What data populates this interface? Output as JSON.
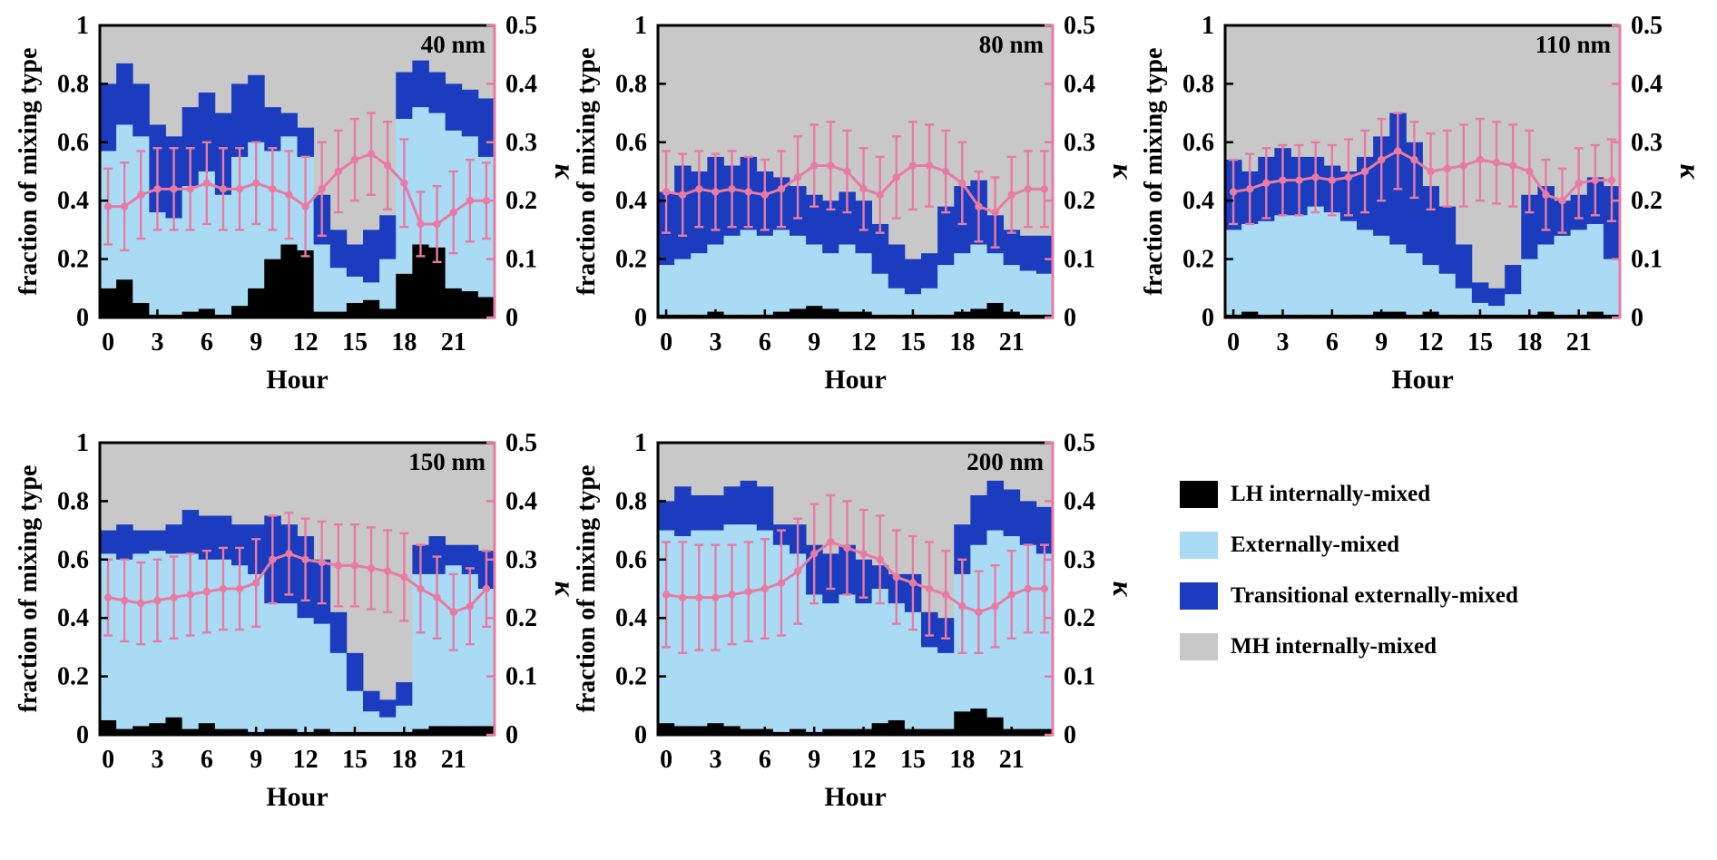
{
  "axes": {
    "x_label": "Hour",
    "x_ticks": [
      0,
      3,
      6,
      9,
      12,
      15,
      18,
      21
    ],
    "x_range": [
      -0.5,
      23.5
    ],
    "left_label": "fraction of mixing type",
    "left_ticks": [
      "0",
      "0.2",
      "0.4",
      "0.6",
      "0.8",
      "1"
    ],
    "left_range": [
      0,
      1
    ],
    "right_label": "κ",
    "right_ticks": [
      "0",
      "0.1",
      "0.2",
      "0.3",
      "0.4",
      "0.5"
    ],
    "right_range": [
      0,
      0.5
    ],
    "grid": false,
    "legend_position": "bottom-right-cell"
  },
  "colors": {
    "lh": "#000000",
    "ext": "#a9dbf5",
    "trans": "#1b3cbe",
    "mh": "#c8c8c8",
    "kappa": "#e87ba3",
    "axis": "#000000",
    "background": "#ffffff"
  },
  "legend": {
    "items": [
      {
        "label": "LH internally-mixed",
        "color": "#000000"
      },
      {
        "label": "Externally-mixed",
        "color": "#a9dbf5"
      },
      {
        "label": "Transitional externally-mixed",
        "color": "#1b3cbe"
      },
      {
        "label": "MH internally-mixed",
        "color": "#c8c8c8"
      }
    ]
  },
  "chart_data": [
    {
      "type": "bar",
      "stacked": true,
      "title": "40 nm",
      "x": [
        0,
        1,
        2,
        3,
        4,
        5,
        6,
        7,
        8,
        9,
        10,
        11,
        12,
        13,
        14,
        15,
        16,
        17,
        18,
        19,
        20,
        21,
        22,
        23
      ],
      "series": [
        {
          "name": "LH internally-mixed",
          "color_key": "lh",
          "values": [
            0.1,
            0.13,
            0.05,
            0.01,
            0.01,
            0.02,
            0.03,
            0.01,
            0.04,
            0.1,
            0.2,
            0.25,
            0.23,
            0.02,
            0.02,
            0.05,
            0.06,
            0.03,
            0.15,
            0.25,
            0.24,
            0.1,
            0.09,
            0.07
          ]
        },
        {
          "name": "Externally-mixed",
          "color_key": "ext",
          "values": [
            0.47,
            0.53,
            0.57,
            0.35,
            0.33,
            0.43,
            0.47,
            0.41,
            0.51,
            0.5,
            0.37,
            0.37,
            0.32,
            0.23,
            0.15,
            0.09,
            0.06,
            0.17,
            0.53,
            0.47,
            0.46,
            0.54,
            0.53,
            0.48
          ]
        },
        {
          "name": "Transitional externally-mixed",
          "color_key": "trans",
          "values": [
            0.23,
            0.21,
            0.18,
            0.3,
            0.28,
            0.27,
            0.27,
            0.28,
            0.25,
            0.23,
            0.15,
            0.08,
            0.1,
            0.17,
            0.13,
            0.11,
            0.18,
            0.15,
            0.16,
            0.16,
            0.14,
            0.16,
            0.16,
            0.2
          ]
        },
        {
          "name": "MH internally-mixed",
          "color_key": "mh",
          "values": "remainder_to_1"
        }
      ],
      "kappa": {
        "values": [
          0.19,
          0.19,
          0.21,
          0.22,
          0.22,
          0.22,
          0.23,
          0.22,
          0.22,
          0.23,
          0.22,
          0.21,
          0.19,
          0.22,
          0.25,
          0.27,
          0.28,
          0.26,
          0.23,
          0.16,
          0.16,
          0.18,
          0.2,
          0.2
        ],
        "err": [
          0.065,
          0.075,
          0.075,
          0.07,
          0.07,
          0.07,
          0.07,
          0.07,
          0.07,
          0.07,
          0.07,
          0.075,
          0.085,
          0.08,
          0.07,
          0.07,
          0.07,
          0.075,
          0.075,
          0.055,
          0.065,
          0.07,
          0.07,
          0.065
        ]
      }
    },
    {
      "type": "bar",
      "stacked": true,
      "title": "80 nm",
      "x": [
        0,
        1,
        2,
        3,
        4,
        5,
        6,
        7,
        8,
        9,
        10,
        11,
        12,
        13,
        14,
        15,
        16,
        17,
        18,
        19,
        20,
        21,
        22,
        23
      ],
      "series": [
        {
          "name": "LH internally-mixed",
          "color_key": "lh",
          "values": [
            0.01,
            0.01,
            0.01,
            0.02,
            0.01,
            0.01,
            0.01,
            0.02,
            0.03,
            0.04,
            0.03,
            0.02,
            0.02,
            0.01,
            0.01,
            0.01,
            0.01,
            0.01,
            0.02,
            0.03,
            0.05,
            0.02,
            0.01,
            0.01
          ]
        },
        {
          "name": "Externally-mixed",
          "color_key": "ext",
          "values": [
            0.17,
            0.19,
            0.21,
            0.23,
            0.27,
            0.29,
            0.27,
            0.28,
            0.25,
            0.21,
            0.19,
            0.23,
            0.2,
            0.14,
            0.09,
            0.07,
            0.09,
            0.17,
            0.2,
            0.22,
            0.17,
            0.16,
            0.15,
            0.14
          ]
        },
        {
          "name": "Transitional externally-mixed",
          "color_key": "trans",
          "values": [
            0.25,
            0.32,
            0.28,
            0.3,
            0.24,
            0.25,
            0.22,
            0.18,
            0.17,
            0.17,
            0.18,
            0.18,
            0.18,
            0.17,
            0.15,
            0.12,
            0.12,
            0.2,
            0.23,
            0.22,
            0.13,
            0.12,
            0.12,
            0.13
          ]
        },
        {
          "name": "MH internally-mixed",
          "color_key": "mh",
          "values": "remainder_to_1"
        }
      ],
      "kappa": {
        "values": [
          0.215,
          0.21,
          0.22,
          0.215,
          0.22,
          0.215,
          0.21,
          0.22,
          0.24,
          0.26,
          0.26,
          0.25,
          0.22,
          0.21,
          0.24,
          0.26,
          0.26,
          0.25,
          0.23,
          0.19,
          0.18,
          0.21,
          0.22,
          0.22
        ],
        "err": [
          0.07,
          0.07,
          0.065,
          0.065,
          0.065,
          0.06,
          0.06,
          0.065,
          0.07,
          0.07,
          0.075,
          0.07,
          0.07,
          0.065,
          0.07,
          0.075,
          0.07,
          0.07,
          0.07,
          0.06,
          0.06,
          0.065,
          0.065,
          0.065
        ]
      }
    },
    {
      "type": "bar",
      "stacked": true,
      "title": "110 nm",
      "x": [
        0,
        1,
        2,
        3,
        4,
        5,
        6,
        7,
        8,
        9,
        10,
        11,
        12,
        13,
        14,
        15,
        16,
        17,
        18,
        19,
        20,
        21,
        22,
        23
      ],
      "series": [
        {
          "name": "LH internally-mixed",
          "color_key": "lh",
          "values": [
            0.01,
            0.02,
            0.01,
            0.01,
            0.01,
            0.01,
            0.01,
            0.01,
            0.01,
            0.02,
            0.02,
            0.01,
            0.02,
            0.01,
            0.01,
            0.01,
            0.01,
            0.01,
            0.01,
            0.02,
            0.01,
            0.01,
            0.02,
            0.01
          ]
        },
        {
          "name": "Externally-mixed",
          "color_key": "ext",
          "values": [
            0.29,
            0.3,
            0.32,
            0.34,
            0.34,
            0.37,
            0.35,
            0.32,
            0.29,
            0.26,
            0.23,
            0.21,
            0.16,
            0.14,
            0.09,
            0.04,
            0.03,
            0.07,
            0.19,
            0.23,
            0.27,
            0.29,
            0.3,
            0.19
          ]
        },
        {
          "name": "Transitional externally-mixed",
          "color_key": "trans",
          "values": [
            0.24,
            0.18,
            0.22,
            0.23,
            0.2,
            0.17,
            0.16,
            0.17,
            0.25,
            0.34,
            0.45,
            0.38,
            0.27,
            0.23,
            0.15,
            0.07,
            0.06,
            0.1,
            0.22,
            0.2,
            0.12,
            0.12,
            0.16,
            0.25
          ]
        },
        {
          "name": "MH internally-mixed",
          "color_key": "mh",
          "values": "remainder_to_1"
        }
      ],
      "kappa": {
        "values": [
          0.215,
          0.22,
          0.23,
          0.235,
          0.235,
          0.24,
          0.235,
          0.24,
          0.25,
          0.27,
          0.285,
          0.27,
          0.25,
          0.255,
          0.26,
          0.27,
          0.265,
          0.26,
          0.25,
          0.21,
          0.2,
          0.23,
          0.235,
          0.235
        ],
        "err": [
          0.055,
          0.06,
          0.06,
          0.06,
          0.06,
          0.06,
          0.06,
          0.065,
          0.07,
          0.07,
          0.065,
          0.065,
          0.065,
          0.065,
          0.07,
          0.07,
          0.07,
          0.07,
          0.07,
          0.06,
          0.055,
          0.06,
          0.06,
          0.07
        ]
      }
    },
    {
      "type": "bar",
      "stacked": true,
      "title": "150 nm",
      "x": [
        0,
        1,
        2,
        3,
        4,
        5,
        6,
        7,
        8,
        9,
        10,
        11,
        12,
        13,
        14,
        15,
        16,
        17,
        18,
        19,
        20,
        21,
        22,
        23
      ],
      "series": [
        {
          "name": "LH internally-mixed",
          "color_key": "lh",
          "values": [
            0.05,
            0.02,
            0.03,
            0.04,
            0.06,
            0.02,
            0.04,
            0.02,
            0.02,
            0.01,
            0.02,
            0.02,
            0.01,
            0.02,
            0.01,
            0.01,
            0.01,
            0.01,
            0.01,
            0.02,
            0.03,
            0.03,
            0.03,
            0.03
          ]
        },
        {
          "name": "Externally-mixed",
          "color_key": "ext",
          "values": [
            0.57,
            0.58,
            0.59,
            0.59,
            0.56,
            0.6,
            0.56,
            0.58,
            0.56,
            0.54,
            0.43,
            0.43,
            0.39,
            0.36,
            0.27,
            0.14,
            0.07,
            0.05,
            0.09,
            0.53,
            0.52,
            0.55,
            0.52,
            0.47
          ]
        },
        {
          "name": "Transitional externally-mixed",
          "color_key": "trans",
          "values": [
            0.08,
            0.12,
            0.08,
            0.07,
            0.1,
            0.15,
            0.15,
            0.15,
            0.14,
            0.17,
            0.3,
            0.27,
            0.28,
            0.22,
            0.14,
            0.13,
            0.07,
            0.06,
            0.08,
            0.1,
            0.13,
            0.07,
            0.1,
            0.13
          ]
        },
        {
          "name": "MH internally-mixed",
          "color_key": "mh",
          "values": "remainder_to_1"
        }
      ],
      "kappa": {
        "values": [
          0.235,
          0.23,
          0.225,
          0.23,
          0.235,
          0.24,
          0.245,
          0.25,
          0.25,
          0.26,
          0.3,
          0.31,
          0.3,
          0.295,
          0.29,
          0.29,
          0.285,
          0.28,
          0.27,
          0.25,
          0.235,
          0.21,
          0.22,
          0.25
        ],
        "err": [
          0.065,
          0.07,
          0.07,
          0.07,
          0.07,
          0.07,
          0.07,
          0.07,
          0.07,
          0.075,
          0.075,
          0.07,
          0.07,
          0.07,
          0.07,
          0.07,
          0.07,
          0.07,
          0.075,
          0.075,
          0.07,
          0.065,
          0.065,
          0.065
        ]
      }
    },
    {
      "type": "bar",
      "stacked": true,
      "title": "200 nm",
      "x": [
        0,
        1,
        2,
        3,
        4,
        5,
        6,
        7,
        8,
        9,
        10,
        11,
        12,
        13,
        14,
        15,
        16,
        17,
        18,
        19,
        20,
        21,
        22,
        23
      ],
      "series": [
        {
          "name": "LH internally-mixed",
          "color_key": "lh",
          "values": [
            0.04,
            0.03,
            0.03,
            0.04,
            0.03,
            0.02,
            0.02,
            0.01,
            0.02,
            0.01,
            0.02,
            0.02,
            0.02,
            0.04,
            0.05,
            0.02,
            0.02,
            0.02,
            0.08,
            0.09,
            0.06,
            0.02,
            0.02,
            0.02
          ]
        },
        {
          "name": "Externally-mixed",
          "color_key": "ext",
          "values": [
            0.66,
            0.65,
            0.67,
            0.66,
            0.69,
            0.7,
            0.68,
            0.64,
            0.6,
            0.47,
            0.43,
            0.46,
            0.43,
            0.46,
            0.4,
            0.4,
            0.28,
            0.26,
            0.47,
            0.56,
            0.64,
            0.66,
            0.63,
            0.6
          ]
        },
        {
          "name": "Transitional externally-mixed",
          "color_key": "trans",
          "values": [
            0.1,
            0.17,
            0.12,
            0.12,
            0.13,
            0.15,
            0.15,
            0.07,
            0.1,
            0.17,
            0.17,
            0.17,
            0.15,
            0.08,
            0.1,
            0.13,
            0.12,
            0.12,
            0.17,
            0.17,
            0.17,
            0.16,
            0.15,
            0.16
          ]
        },
        {
          "name": "MH internally-mixed",
          "color_key": "mh",
          "values": "remainder_to_1"
        }
      ],
      "kappa": {
        "values": [
          0.24,
          0.235,
          0.235,
          0.235,
          0.24,
          0.245,
          0.25,
          0.26,
          0.28,
          0.31,
          0.33,
          0.32,
          0.31,
          0.3,
          0.27,
          0.26,
          0.25,
          0.24,
          0.22,
          0.21,
          0.22,
          0.24,
          0.25,
          0.25
        ],
        "err": [
          0.09,
          0.095,
          0.09,
          0.09,
          0.085,
          0.085,
          0.085,
          0.09,
          0.09,
          0.085,
          0.08,
          0.08,
          0.075,
          0.075,
          0.08,
          0.08,
          0.08,
          0.075,
          0.08,
          0.07,
          0.07,
          0.075,
          0.075,
          0.075
        ]
      }
    }
  ]
}
